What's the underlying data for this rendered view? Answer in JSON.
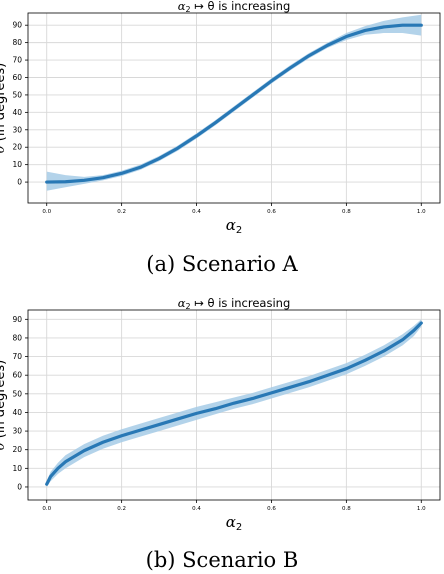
{
  "captions": [
    "(a) Scenario A",
    "(b) Scenario B"
  ],
  "chart_data": [
    {
      "type": "line",
      "title_prefix": "α",
      "title_sub": "2",
      "title_suffix": " ↦ θ is increasing",
      "xlabel_main": "α",
      "xlabel_sub": "2",
      "ylabel_symbol": "θ",
      "ylabel_text": " (in degrees)",
      "xlim": [
        -0.05,
        1.05
      ],
      "ylim": [
        -12,
        97
      ],
      "xticks": [
        0.0,
        0.2,
        0.4,
        0.6,
        0.8,
        1.0
      ],
      "xtick_labels": [
        "0.0",
        "0.2",
        "0.4",
        "0.6",
        "0.8",
        "1.0"
      ],
      "yticks": [
        0,
        10,
        20,
        30,
        40,
        50,
        60,
        70,
        80,
        90
      ],
      "ytick_labels": [
        "0",
        "10",
        "20",
        "30",
        "40",
        "50",
        "60",
        "70",
        "80",
        "90"
      ],
      "grid": true,
      "line_color": "#2878b5",
      "band_color": "#a6cbe6",
      "x": [
        0.0,
        0.05,
        0.1,
        0.15,
        0.2,
        0.25,
        0.3,
        0.35,
        0.4,
        0.45,
        0.5,
        0.55,
        0.6,
        0.65,
        0.7,
        0.75,
        0.8,
        0.85,
        0.9,
        0.95,
        1.0
      ],
      "y": [
        0.0,
        0.2,
        1.0,
        2.5,
        5.0,
        8.5,
        13.5,
        19.5,
        26.5,
        34.0,
        42.0,
        50.0,
        58.0,
        65.5,
        72.5,
        78.5,
        83.5,
        87.0,
        89.0,
        90.0,
        90.0
      ],
      "lower": [
        -5.0,
        -3.0,
        -1.0,
        1.0,
        3.5,
        7.0,
        12.0,
        18.0,
        25.0,
        32.5,
        40.5,
        48.5,
        56.5,
        64.0,
        71.0,
        77.0,
        81.5,
        84.5,
        85.5,
        85.5,
        84.0
      ],
      "upper": [
        6.0,
        4.0,
        3.0,
        4.0,
        6.5,
        10.0,
        15.0,
        21.0,
        28.0,
        35.5,
        43.5,
        51.5,
        59.5,
        67.0,
        74.0,
        80.0,
        85.5,
        89.5,
        92.5,
        94.5,
        96.0
      ]
    },
    {
      "type": "line",
      "title_prefix": "α",
      "title_sub": "2",
      "title_suffix": " ↦ θ is increasing",
      "xlabel_main": "α",
      "xlabel_sub": "2",
      "ylabel_symbol": "θ",
      "ylabel_text": " (in degrees)",
      "xlim": [
        -0.05,
        1.05
      ],
      "ylim": [
        -7,
        95
      ],
      "xticks": [
        0.0,
        0.2,
        0.4,
        0.6,
        0.8,
        1.0
      ],
      "xtick_labels": [
        "0.0",
        "0.2",
        "0.4",
        "0.6",
        "0.8",
        "1.0"
      ],
      "yticks": [
        0,
        10,
        20,
        30,
        40,
        50,
        60,
        70,
        80,
        90
      ],
      "ytick_labels": [
        "0",
        "10",
        "20",
        "30",
        "40",
        "50",
        "60",
        "70",
        "80",
        "90"
      ],
      "grid": true,
      "line_color": "#2878b5",
      "band_color": "#a6cbe6",
      "x": [
        0.0,
        0.01,
        0.03,
        0.05,
        0.1,
        0.15,
        0.2,
        0.25,
        0.3,
        0.35,
        0.4,
        0.45,
        0.5,
        0.55,
        0.6,
        0.65,
        0.7,
        0.75,
        0.8,
        0.85,
        0.9,
        0.95,
        0.98,
        1.0
      ],
      "y": [
        1.5,
        5.5,
        10.0,
        13.5,
        19.5,
        24.0,
        27.5,
        30.5,
        33.5,
        36.5,
        39.5,
        42.0,
        45.0,
        47.5,
        50.5,
        53.5,
        56.5,
        60.0,
        63.5,
        68.0,
        73.0,
        79.0,
        84.0,
        88.0
      ],
      "lower": [
        0.0,
        3.0,
        7.0,
        10.0,
        16.0,
        20.5,
        24.0,
        27.0,
        30.0,
        33.0,
        36.0,
        39.0,
        42.0,
        44.5,
        47.5,
        50.5,
        53.5,
        57.0,
        60.5,
        65.0,
        70.0,
        76.0,
        81.0,
        86.0
      ],
      "upper": [
        3.0,
        8.0,
        13.0,
        17.0,
        23.0,
        27.5,
        31.0,
        34.0,
        37.0,
        40.0,
        43.0,
        45.5,
        48.0,
        50.5,
        53.5,
        56.5,
        59.5,
        63.0,
        66.5,
        71.0,
        76.0,
        82.0,
        86.5,
        90.0
      ]
    }
  ]
}
